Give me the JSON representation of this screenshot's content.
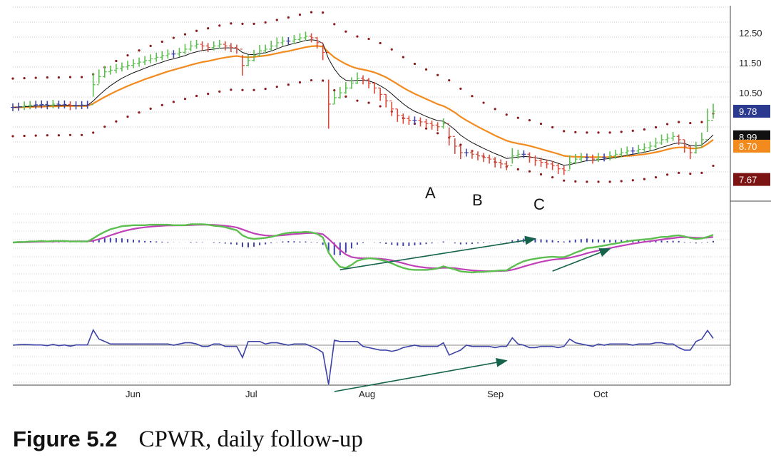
{
  "chart_data": {
    "type": "line",
    "symbol": "CPWR",
    "x_labels": [
      "Jun",
      "Jul",
      "Aug",
      "Sep",
      "Oct"
    ],
    "price_axis": {
      "ticks": [
        "12.50",
        "11.50",
        "10.50"
      ],
      "ylim": [
        7.0,
        13.0
      ]
    },
    "price_tags": [
      {
        "label": "9.78",
        "value": 9.78,
        "color": "#2b3a8f"
      },
      {
        "label": "8.99",
        "value": 8.99,
        "color": "#111111"
      },
      {
        "label": "8.70",
        "value": 8.7,
        "color": "#f28a1e"
      },
      {
        "label": "7.67",
        "value": 7.67,
        "color": "#7d1414"
      }
    ],
    "annotations": [
      "A",
      "B",
      "C"
    ],
    "closes": [
      9.9,
      9.92,
      9.95,
      9.97,
      9.98,
      9.99,
      9.97,
      10.0,
      9.98,
      9.99,
      9.95,
      9.96,
      9.97,
      9.98,
      10.6,
      10.85,
      11.0,
      11.05,
      11.1,
      11.15,
      11.2,
      11.25,
      11.3,
      11.35,
      11.4,
      11.45,
      11.5,
      11.55,
      11.55,
      11.6,
      11.7,
      11.8,
      11.85,
      11.8,
      11.75,
      11.8,
      11.85,
      11.8,
      11.75,
      11.7,
      11.2,
      11.35,
      11.5,
      11.65,
      11.7,
      11.8,
      11.9,
      11.95,
      11.95,
      12.0,
      12.05,
      12.1,
      12.05,
      11.9,
      11.6,
      10.0,
      10.2,
      10.35,
      10.5,
      10.65,
      10.8,
      10.75,
      10.65,
      10.5,
      10.3,
      10.1,
      9.85,
      9.65,
      9.55,
      9.5,
      9.5,
      9.45,
      9.4,
      9.35,
      9.3,
      9.4,
      9.0,
      8.7,
      8.5,
      8.5,
      8.45,
      8.4,
      8.35,
      8.3,
      8.2,
      8.15,
      8.1,
      8.4,
      8.45,
      8.45,
      8.35,
      8.25,
      8.2,
      8.15,
      8.1,
      8.0,
      7.95,
      8.2,
      8.3,
      8.35,
      8.35,
      8.3,
      8.35,
      8.35,
      8.4,
      8.45,
      8.5,
      8.55,
      8.55,
      8.6,
      8.65,
      8.7,
      8.8,
      8.9,
      8.95,
      9.0,
      8.9,
      8.7,
      8.5,
      8.65,
      8.9,
      9.5,
      9.78
    ],
    "ema_short": [
      9.9,
      9.91,
      9.92,
      9.93,
      9.94,
      9.95,
      9.95,
      9.96,
      9.96,
      9.97,
      9.96,
      9.96,
      9.96,
      9.96,
      10.1,
      10.27,
      10.43,
      10.57,
      10.69,
      10.8,
      10.89,
      10.97,
      11.04,
      11.11,
      11.18,
      11.24,
      11.3,
      11.36,
      11.4,
      11.45,
      11.5,
      11.57,
      11.62,
      11.66,
      11.68,
      11.7,
      11.73,
      11.74,
      11.74,
      11.73,
      11.6,
      11.54,
      11.53,
      11.56,
      11.59,
      11.64,
      11.71,
      11.78,
      11.83,
      11.88,
      11.92,
      11.97,
      11.99,
      11.97,
      11.88,
      11.4,
      11.09,
      10.86,
      10.74,
      10.72,
      10.74,
      10.74,
      10.72,
      10.66,
      10.57,
      10.46,
      10.32,
      10.16,
      10.01,
      9.88,
      9.78,
      9.7,
      9.62,
      9.55,
      9.49,
      9.47,
      9.35,
      9.21,
      9.04,
      8.92,
      8.81,
      8.72,
      8.63,
      8.55,
      8.47,
      8.4,
      8.32,
      8.34,
      8.36,
      8.38,
      8.37,
      8.34,
      8.31,
      8.27,
      8.23,
      8.17,
      8.11,
      8.13,
      8.17,
      8.21,
      8.25,
      8.26,
      8.28,
      8.3,
      8.32,
      8.35,
      8.38,
      8.42,
      8.45,
      8.48,
      8.51,
      8.55,
      8.6,
      8.66,
      8.71,
      8.77,
      8.8,
      8.78,
      8.72,
      8.7,
      8.74,
      8.88,
      9.05
    ],
    "ema_long": [
      9.9,
      9.9,
      9.91,
      9.91,
      9.92,
      9.92,
      9.93,
      9.93,
      9.93,
      9.94,
      9.94,
      9.94,
      9.94,
      9.94,
      10.02,
      10.12,
      10.22,
      10.31,
      10.4,
      10.48,
      10.56,
      10.63,
      10.7,
      10.77,
      10.83,
      10.89,
      10.95,
      11.01,
      11.06,
      11.11,
      11.16,
      11.21,
      11.26,
      11.3,
      11.33,
      11.37,
      11.41,
      11.44,
      11.47,
      11.49,
      11.46,
      11.45,
      11.46,
      11.48,
      11.5,
      11.53,
      11.57,
      11.61,
      11.64,
      11.68,
      11.72,
      11.76,
      11.79,
      11.8,
      11.78,
      11.6,
      11.45,
      11.34,
      11.24,
      11.16,
      11.1,
      11.07,
      11.03,
      10.98,
      10.91,
      10.83,
      10.73,
      10.62,
      10.51,
      10.41,
      10.32,
      10.24,
      10.16,
      10.08,
      10.0,
      9.94,
      9.85,
      9.74,
      9.61,
      9.5,
      9.4,
      9.3,
      9.21,
      9.12,
      9.03,
      8.95,
      8.87,
      8.82,
      8.78,
      8.75,
      8.71,
      8.66,
      8.61,
      8.56,
      8.51,
      8.46,
      8.4,
      8.38,
      8.37,
      8.37,
      8.36,
      8.36,
      8.36,
      8.36,
      8.36,
      8.37,
      8.38,
      8.4,
      8.41,
      8.43,
      8.45,
      8.48,
      8.51,
      8.55,
      8.6,
      8.64,
      8.66,
      8.66,
      8.63,
      8.63,
      8.66,
      8.77,
      8.9
    ]
  },
  "caption": {
    "label": "Figure 5.2",
    "text": "CPWR, daily follow-up"
  }
}
